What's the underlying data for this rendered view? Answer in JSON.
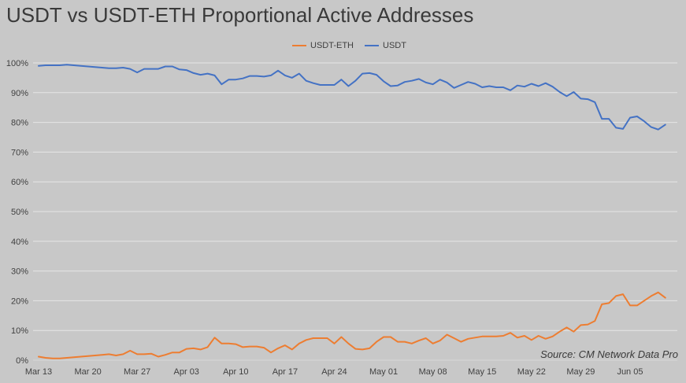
{
  "title": "USDT vs USDT-ETH Proportional Active Addresses",
  "source": "Source: CM Network Data Pro",
  "colors": {
    "background": "#c8c8c8",
    "grid": "#e6e6e6",
    "usdt": "#4472c4",
    "usdt_eth": "#ed7d31"
  },
  "chart_data": {
    "type": "line",
    "title": "USDT vs USDT-ETH Proportional Active Addresses",
    "xlabel": "",
    "ylabel": "",
    "ylim": [
      0,
      100
    ],
    "y_ticks": [
      "0%",
      "10%",
      "20%",
      "30%",
      "40%",
      "50%",
      "60%",
      "70%",
      "80%",
      "90%",
      "100%"
    ],
    "x_ticks": [
      "Mar 13",
      "Mar 20",
      "Mar 27",
      "Apr 03",
      "Apr 10",
      "Apr 17",
      "Apr 24",
      "May 01",
      "May 08",
      "May 15",
      "May 22",
      "May 29",
      "Jun 05"
    ],
    "x_start": "Mar 13",
    "x_frequency": "daily",
    "grid": true,
    "legend_position": "top",
    "series": [
      {
        "name": "USDT-ETH",
        "values": [
          1.2,
          0.8,
          0.6,
          0.6,
          0.8,
          1.0,
          1.2,
          1.4,
          1.6,
          1.8,
          2.0,
          1.6,
          2.0,
          3.2,
          2.0,
          2.0,
          2.2,
          1.2,
          1.8,
          2.6,
          2.6,
          3.8,
          4.0,
          3.6,
          4.4,
          7.6,
          5.6,
          5.6,
          5.4,
          4.4,
          4.6,
          4.6,
          4.2,
          2.6,
          4.0,
          5.0,
          3.6,
          5.6,
          6.8,
          7.4,
          7.4,
          7.4,
          5.6,
          7.8,
          5.6,
          3.8,
          3.6,
          4.0,
          6.2,
          7.8,
          7.8,
          6.2,
          6.2,
          5.6,
          6.6,
          7.4,
          5.6,
          6.6,
          8.6,
          7.4,
          6.2,
          7.2,
          7.6,
          8.0,
          8.0,
          8.0,
          8.2,
          9.2,
          7.6,
          8.2,
          6.8,
          8.2,
          7.2,
          8.0,
          9.6,
          11.0,
          9.6,
          11.8,
          12.0,
          13.2,
          18.8,
          19.2,
          21.6,
          22.2,
          18.4,
          18.4,
          20.0,
          21.6,
          22.8,
          21.0
        ]
      },
      {
        "name": "USDT",
        "values": [
          99.0,
          99.2,
          99.2,
          99.2,
          99.4,
          99.2,
          99.0,
          98.8,
          98.6,
          98.4,
          98.2,
          98.2,
          98.4,
          98.0,
          96.8,
          98.0,
          98.0,
          98.0,
          98.8,
          98.8,
          97.8,
          97.6,
          96.6,
          96.0,
          96.4,
          95.8,
          92.8,
          94.4,
          94.4,
          94.8,
          95.6,
          95.6,
          95.4,
          95.8,
          97.4,
          95.8,
          95.0,
          96.4,
          94.0,
          93.2,
          92.6,
          92.6,
          92.6,
          94.4,
          92.2,
          94.0,
          96.4,
          96.6,
          96.0,
          93.8,
          92.2,
          92.4,
          93.6,
          94.0,
          94.6,
          93.4,
          92.8,
          94.4,
          93.4,
          91.6,
          92.6,
          93.6,
          93.0,
          91.8,
          92.2,
          91.8,
          91.8,
          90.8,
          92.4,
          92.0,
          93.0,
          92.2,
          93.2,
          92.0,
          90.2,
          88.8,
          90.2,
          88.0,
          87.8,
          86.8,
          81.2,
          81.2,
          78.2,
          77.8,
          81.6,
          82.0,
          80.4,
          78.4,
          77.6,
          79.2
        ]
      }
    ]
  }
}
